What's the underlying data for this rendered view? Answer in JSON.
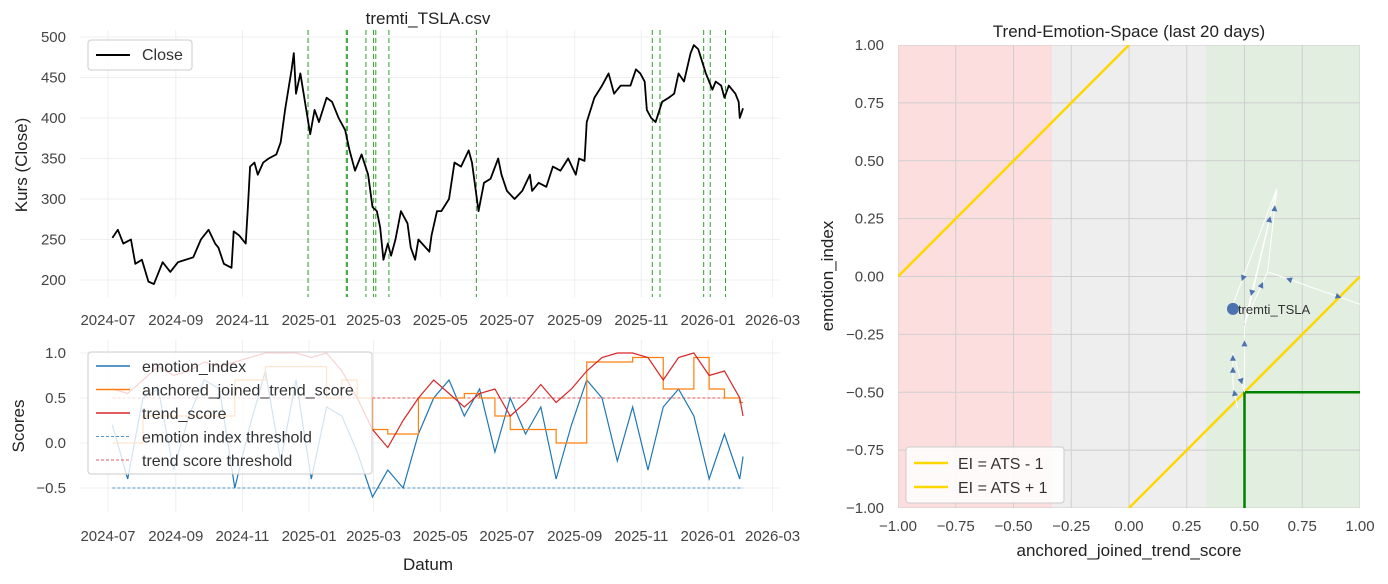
{
  "chart_data": [
    {
      "type": "line",
      "title": "tremti_TSLA.csv",
      "xlabel": "",
      "ylabel": "Kurs (Close)",
      "ylim": [
        180,
        510
      ],
      "yticks": [
        200,
        250,
        300,
        350,
        400,
        450,
        500
      ],
      "xticks": [
        "2024-07",
        "2024-09",
        "2024-11",
        "2025-01",
        "2025-03",
        "2025-05",
        "2025-07",
        "2025-09",
        "2025-11",
        "2026-01",
        "2026-03"
      ],
      "legend": {
        "position": "top-left",
        "entries": [
          "Close"
        ]
      },
      "series": [
        {
          "name": "Close",
          "color": "#000000",
          "points": [
            [
              "2024-07-05",
              252
            ],
            [
              "2024-07-10",
              262
            ],
            [
              "2024-07-15",
              245
            ],
            [
              "2024-07-22",
              250
            ],
            [
              "2024-07-26",
              220
            ],
            [
              "2024-08-01",
              225
            ],
            [
              "2024-08-07",
              198
            ],
            [
              "2024-08-12",
              195
            ],
            [
              "2024-08-20",
              222
            ],
            [
              "2024-08-27",
              210
            ],
            [
              "2024-09-03",
              222
            ],
            [
              "2024-09-10",
              225
            ],
            [
              "2024-09-17",
              228
            ],
            [
              "2024-09-24",
              250
            ],
            [
              "2024-10-01",
              262
            ],
            [
              "2024-10-07",
              245
            ],
            [
              "2024-10-10",
              240
            ],
            [
              "2024-10-15",
              220
            ],
            [
              "2024-10-22",
              215
            ],
            [
              "2024-10-24",
              260
            ],
            [
              "2024-10-29",
              255
            ],
            [
              "2024-11-04",
              245
            ],
            [
              "2024-11-06",
              290
            ],
            [
              "2024-11-08",
              340
            ],
            [
              "2024-11-12",
              345
            ],
            [
              "2024-11-15",
              330
            ],
            [
              "2024-11-20",
              345
            ],
            [
              "2024-11-25",
              350
            ],
            [
              "2024-12-02",
              355
            ],
            [
              "2024-12-06",
              370
            ],
            [
              "2024-12-10",
              410
            ],
            [
              "2024-12-16",
              460
            ],
            [
              "2024-12-18",
              480
            ],
            [
              "2024-12-20",
              430
            ],
            [
              "2024-12-24",
              455
            ],
            [
              "2024-12-27",
              430
            ],
            [
              "2025-01-02",
              380
            ],
            [
              "2025-01-06",
              410
            ],
            [
              "2025-01-10",
              395
            ],
            [
              "2025-01-17",
              425
            ],
            [
              "2025-01-22",
              420
            ],
            [
              "2025-01-28",
              400
            ],
            [
              "2025-02-03",
              385
            ],
            [
              "2025-02-07",
              360
            ],
            [
              "2025-02-12",
              335
            ],
            [
              "2025-02-18",
              355
            ],
            [
              "2025-02-24",
              330
            ],
            [
              "2025-02-28",
              290
            ],
            [
              "2025-03-04",
              285
            ],
            [
              "2025-03-07",
              265
            ],
            [
              "2025-03-10",
              225
            ],
            [
              "2025-03-14",
              245
            ],
            [
              "2025-03-17",
              230
            ],
            [
              "2025-03-21",
              250
            ],
            [
              "2025-03-26",
              285
            ],
            [
              "2025-04-01",
              270
            ],
            [
              "2025-04-04",
              240
            ],
            [
              "2025-04-08",
              225
            ],
            [
              "2025-04-11",
              250
            ],
            [
              "2025-04-21",
              235
            ],
            [
              "2025-04-23",
              255
            ],
            [
              "2025-04-28",
              285
            ],
            [
              "2025-05-02",
              285
            ],
            [
              "2025-05-09",
              300
            ],
            [
              "2025-05-14",
              345
            ],
            [
              "2025-05-20",
              340
            ],
            [
              "2025-05-27",
              360
            ],
            [
              "2025-05-30",
              345
            ],
            [
              "2025-06-05",
              285
            ],
            [
              "2025-06-10",
              320
            ],
            [
              "2025-06-16",
              325
            ],
            [
              "2025-06-23",
              350
            ],
            [
              "2025-06-26",
              330
            ],
            [
              "2025-07-01",
              310
            ],
            [
              "2025-07-08",
              300
            ],
            [
              "2025-07-15",
              310
            ],
            [
              "2025-07-22",
              330
            ],
            [
              "2025-07-24",
              310
            ],
            [
              "2025-07-30",
              320
            ],
            [
              "2025-08-06",
              315
            ],
            [
              "2025-08-12",
              340
            ],
            [
              "2025-08-19",
              335
            ],
            [
              "2025-08-26",
              350
            ],
            [
              "2025-09-02",
              330
            ],
            [
              "2025-09-05",
              350
            ],
            [
              "2025-09-10",
              347
            ],
            [
              "2025-09-12",
              395
            ],
            [
              "2025-09-19",
              425
            ],
            [
              "2025-09-26",
              440
            ],
            [
              "2025-10-02",
              455
            ],
            [
              "2025-10-07",
              430
            ],
            [
              "2025-10-13",
              440
            ],
            [
              "2025-10-17",
              440
            ],
            [
              "2025-10-22",
              440
            ],
            [
              "2025-10-27",
              460
            ],
            [
              "2025-10-31",
              455
            ],
            [
              "2025-11-04",
              445
            ],
            [
              "2025-11-06",
              410
            ],
            [
              "2025-11-10",
              400
            ],
            [
              "2025-11-14",
              395
            ],
            [
              "2025-11-20",
              420
            ],
            [
              "2025-11-26",
              425
            ],
            [
              "2025-12-01",
              430
            ],
            [
              "2025-12-05",
              455
            ],
            [
              "2025-12-10",
              445
            ],
            [
              "2025-12-16",
              480
            ],
            [
              "2025-12-19",
              490
            ],
            [
              "2025-12-23",
              485
            ],
            [
              "2025-12-30",
              455
            ],
            [
              "2026-01-05",
              435
            ],
            [
              "2026-01-08",
              445
            ],
            [
              "2026-01-13",
              440
            ],
            [
              "2026-01-16",
              425
            ],
            [
              "2026-01-20",
              440
            ],
            [
              "2026-01-26",
              430
            ],
            [
              "2026-01-29",
              420
            ],
            [
              "2026-01-30",
              400
            ],
            [
              "2026-02-02",
              412
            ]
          ]
        }
      ],
      "signal_lines": {
        "color": "#2ca02c",
        "dates": [
          "2024-12-31",
          "2025-02-04",
          "2025-02-05",
          "2025-02-22",
          "2025-03-01",
          "2025-03-03",
          "2025-03-15",
          "2025-06-03",
          "2025-11-11",
          "2025-11-18",
          "2025-12-28",
          "2026-01-03",
          "2026-01-17"
        ]
      }
    },
    {
      "type": "line",
      "title": "",
      "xlabel": "Datum",
      "ylabel": "Scores",
      "ylim": [
        -0.75,
        1.1
      ],
      "yticks": [
        -0.5,
        0.0,
        0.5,
        1.0
      ],
      "ytick_labels": [
        "−0.5",
        "0.0",
        "0.5",
        "1.0"
      ],
      "xticks": [
        "2024-07",
        "2024-09",
        "2024-11",
        "2025-01",
        "2025-03",
        "2025-05",
        "2025-07",
        "2025-09",
        "2025-11",
        "2026-01",
        "2026-03"
      ],
      "legend": {
        "position": "top-left",
        "entries": [
          "emotion_index",
          "anchored_joined_trend_score",
          "trend_score",
          "emotion index threshold",
          "trend score threshold"
        ]
      },
      "dates": [
        "2024-07-05",
        "2024-07-19",
        "2024-08-02",
        "2024-08-16",
        "2024-08-30",
        "2024-09-13",
        "2024-09-27",
        "2024-10-11",
        "2024-10-25",
        "2024-11-08",
        "2024-11-22",
        "2024-12-06",
        "2024-12-20",
        "2025-01-03",
        "2025-01-17",
        "2025-01-31",
        "2025-02-14",
        "2025-02-28",
        "2025-03-14",
        "2025-03-28",
        "2025-04-11",
        "2025-04-25",
        "2025-05-09",
        "2025-05-23",
        "2025-06-06",
        "2025-06-20",
        "2025-07-04",
        "2025-07-18",
        "2025-08-01",
        "2025-08-15",
        "2025-08-29",
        "2025-09-12",
        "2025-09-26",
        "2025-10-10",
        "2025-10-24",
        "2025-11-07",
        "2025-11-21",
        "2025-12-05",
        "2025-12-19",
        "2026-01-02",
        "2026-01-16",
        "2026-01-30",
        "2026-02-02"
      ],
      "series": [
        {
          "name": "emotion_index",
          "color": "#1f77b4",
          "values": [
            0.2,
            -0.4,
            0.5,
            0.6,
            -0.3,
            0.3,
            0.7,
            0.6,
            -0.5,
            0.2,
            0.8,
            -0.2,
            0.7,
            -0.4,
            0.4,
            0.3,
            -0.1,
            -0.6,
            -0.3,
            -0.5,
            0.1,
            0.5,
            0.7,
            0.3,
            0.6,
            -0.1,
            0.5,
            0.1,
            0.4,
            -0.4,
            0.2,
            0.7,
            0.5,
            -0.2,
            0.4,
            -0.3,
            0.4,
            0.6,
            0.3,
            -0.4,
            0.1,
            -0.4,
            -0.15
          ]
        },
        {
          "name": "anchored_joined_trend_score",
          "color": "#ff7f0e",
          "step": true,
          "values": [
            0.0,
            0.0,
            0.3,
            0.3,
            0.3,
            0.3,
            0.3,
            0.3,
            0.7,
            0.7,
            0.85,
            0.85,
            0.85,
            0.85,
            0.5,
            0.7,
            0.5,
            0.15,
            0.1,
            0.1,
            0.5,
            0.5,
            0.5,
            0.55,
            0.5,
            0.3,
            0.15,
            0.15,
            0.15,
            0.0,
            0.0,
            0.9,
            0.9,
            0.9,
            0.95,
            0.95,
            0.6,
            0.6,
            0.95,
            0.6,
            0.5,
            0.45,
            0.45
          ]
        },
        {
          "name": "trend_score",
          "color": "#d62728",
          "values": [
            0.6,
            0.55,
            0.7,
            0.85,
            0.75,
            0.8,
            0.9,
            0.85,
            0.9,
            0.95,
            1.0,
            1.0,
            1.0,
            0.95,
            1.0,
            0.8,
            0.5,
            0.15,
            -0.05,
            0.25,
            0.5,
            0.7,
            0.55,
            0.4,
            0.55,
            0.6,
            0.3,
            0.45,
            0.65,
            0.45,
            0.6,
            0.8,
            0.95,
            1.0,
            1.0,
            0.95,
            0.7,
            0.95,
            1.0,
            0.75,
            0.8,
            0.5,
            0.3
          ]
        }
      ],
      "thresholds": [
        {
          "name": "emotion index threshold",
          "value": -0.5,
          "color": "#1f77b4"
        },
        {
          "name": "trend score threshold",
          "value": 0.5,
          "color": "#d62728"
        }
      ]
    },
    {
      "type": "scatter",
      "title": "Trend-Emotion-Space (last 20 days)",
      "xlabel": "anchored_joined_trend_score",
      "ylabel": "emotion_index",
      "xlim": [
        -1,
        1
      ],
      "ylim": [
        -1,
        1
      ],
      "xticks": [
        -1,
        -0.75,
        -0.5,
        -0.25,
        0,
        0.25,
        0.5,
        0.75,
        1
      ],
      "xtick_labels": [
        "−1.00",
        "−0.75",
        "−0.50",
        "−0.25",
        "0.00",
        "0.25",
        "0.50",
        "0.75",
        "1.00"
      ],
      "ytick_labels": [
        "−1.00",
        "−0.75",
        "−0.50",
        "−0.25",
        "0.00",
        "0.25",
        "0.50",
        "0.75",
        "1.00"
      ],
      "regions": [
        {
          "from": -1,
          "to": -0.333,
          "color": "#fddede"
        },
        {
          "from": -0.333,
          "to": 0.333,
          "color": "#eeeeee"
        },
        {
          "from": 0.333,
          "to": 1,
          "color": "#e1eee0"
        }
      ],
      "reference_lines": [
        {
          "label": "EI = ATS - 1",
          "offset": -1,
          "color": "#ffd700"
        },
        {
          "label": "EI = ATS + 1",
          "offset": 1,
          "color": "#ffd700"
        }
      ],
      "target_box": {
        "x": 0.5,
        "y": -0.5,
        "color": "#008000"
      },
      "legend": {
        "position": "lower-left"
      },
      "trajectory": [
        [
          0.47,
          -0.57
        ],
        [
          0.45,
          -0.47
        ],
        [
          0.45,
          -0.37
        ],
        [
          0.45,
          -0.33
        ],
        [
          0.5,
          -0.5
        ],
        [
          0.5,
          -0.22
        ],
        [
          0.64,
          0.38
        ],
        [
          0.5,
          -0.2
        ],
        [
          0.6,
          0.02
        ],
        [
          1.05,
          -0.12
        ],
        [
          0.6,
          0.02
        ],
        [
          0.64,
          0.38
        ],
        [
          0.45,
          -0.12
        ]
      ],
      "current": {
        "label": "tremti_TSLA",
        "x": 0.45,
        "y": -0.14,
        "color": "#4c72b0"
      }
    }
  ]
}
